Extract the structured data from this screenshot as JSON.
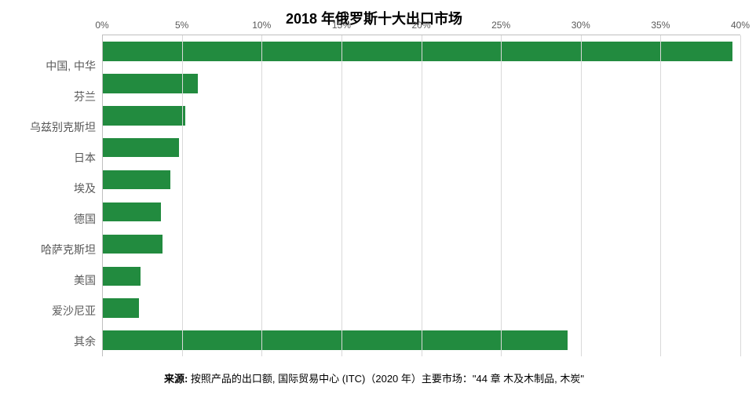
{
  "chart": {
    "type": "bar",
    "orientation": "horizontal",
    "title": "2018 年俄罗斯十大出口市场",
    "title_fontsize": 18,
    "title_color": "#000000",
    "background_color": "#ffffff",
    "bar_color": "#228b3f",
    "grid_color": "#d9d9d9",
    "axis_line_color": "#bfbfbf",
    "label_color": "#595959",
    "label_fontsize": 14,
    "tick_fontsize": 12,
    "x_axis": {
      "min": 0,
      "max": 40,
      "step": 5,
      "format": "percent",
      "ticks": [
        0,
        5,
        10,
        15,
        20,
        25,
        30,
        35,
        40
      ],
      "tick_labels": [
        "0%",
        "5%",
        "10%",
        "15%",
        "20%",
        "25%",
        "30%",
        "35%",
        "40%"
      ]
    },
    "categories": [
      "中国, 中华",
      "芬兰",
      "乌兹别克斯坦",
      "日本",
      "埃及",
      "德国",
      "哈萨克斯坦",
      "美国",
      "爱沙尼亚",
      "其余"
    ],
    "values": [
      39.5,
      6.0,
      5.2,
      4.8,
      4.3,
      3.7,
      3.8,
      2.4,
      2.3,
      29.2
    ],
    "bar_height_ratio": 0.6
  },
  "source": {
    "label": "来源: ",
    "text": "按照产品的出口额, 国际贸易中心 (ITC)（2020 年）主要市场：\"44 章 木及木制品, 木炭\"",
    "fontsize": 13,
    "color": "#000000"
  }
}
